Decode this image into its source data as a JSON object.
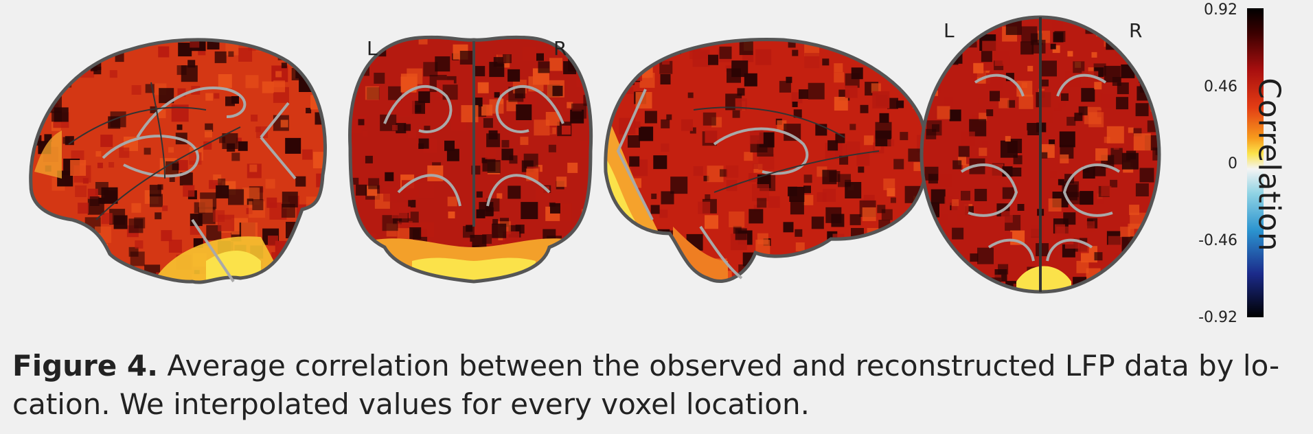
{
  "figure": {
    "views": [
      {
        "name": "sagittal-left-view"
      },
      {
        "name": "coronal-view",
        "left_label": "L",
        "right_label": "R"
      },
      {
        "name": "sagittal-right-view"
      },
      {
        "name": "axial-view",
        "left_label": "L",
        "right_label": "R"
      }
    ],
    "colorbar": {
      "label": "Correlation",
      "ticks": [
        "0.92",
        "0.46",
        "0",
        "-0.46",
        "-0.92"
      ],
      "min": -0.92,
      "max": 0.92,
      "colors": [
        "#000000",
        "#3a0000",
        "#a80f0f",
        "#e33c14",
        "#f79b1d",
        "#fbe34a",
        "#f4f4f4",
        "#8fd3e4",
        "#2b93cf",
        "#1b2a8a",
        "#000000"
      ]
    },
    "caption": {
      "label": "Figure 4.",
      "line1": " Average correlation between the observed and reconstructed LFP data by lo-",
      "line2": "cation. We interpolated values for every voxel location."
    },
    "palette": {
      "dark": "#2a0404",
      "red": "#b81a10",
      "orange": "#e8501a",
      "yellow": "#f8e24a",
      "outline": "#555555",
      "gyri": "#a9a9a9"
    }
  }
}
